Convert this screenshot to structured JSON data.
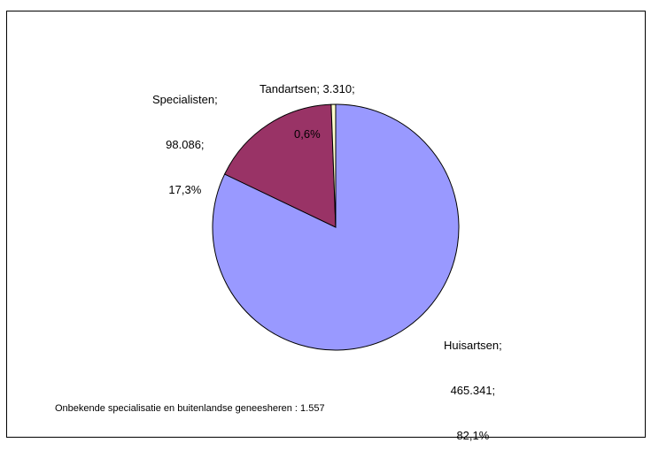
{
  "chart_data": {
    "type": "pie",
    "title": "",
    "slices": [
      {
        "label": "Huisartsen",
        "value": 465341,
        "value_text": "465.341;",
        "percent_text": "82,1%",
        "color": "#9999ff"
      },
      {
        "label": "Specialisten",
        "value": 98086,
        "value_text": "98.086;",
        "percent_text": "17,3%",
        "color": "#993366"
      },
      {
        "label": "Tandartsen",
        "value": 3310,
        "value_text": "3.310;",
        "percent_text": "0,6%",
        "color": "#ffffcc"
      }
    ],
    "slice_order": "clockwise from top, starting with Tandartsen? no: Huisartsen clockwise from 12 o'clock",
    "footnote": "Onbekende specialisatie en buitenlandse geneesheren : 1.557"
  },
  "labels": {
    "huisartsen": [
      "Huisartsen;",
      "465.341;",
      "82,1%"
    ],
    "specialisten": [
      "Specialisten;",
      "98.086;",
      "17,3%"
    ],
    "tandartsen": [
      "Tandartsen; 3.310;",
      "0,6%"
    ]
  }
}
